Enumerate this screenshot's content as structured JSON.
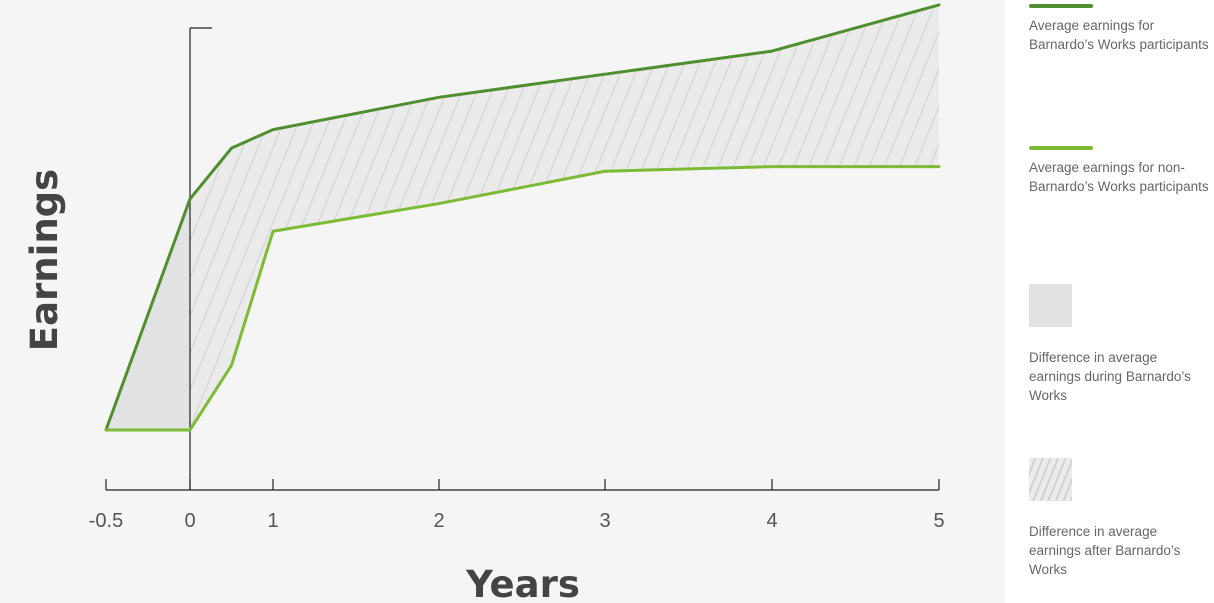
{
  "chart_data": {
    "type": "line",
    "xlabel": "Years",
    "ylabel": "Earnings",
    "x_ticks": [
      "-0.5",
      "0",
      "1",
      "2",
      "3",
      "4",
      "5"
    ],
    "xlim": [
      -0.5,
      5
    ],
    "ylim": [
      0,
      100
    ],
    "series": [
      {
        "name": "Average earnings for Barnardo’s Works participants",
        "color": "#4f8f2f",
        "points": [
          [
            -0.5,
            13
          ],
          [
            0,
            63
          ],
          [
            0.5,
            74
          ],
          [
            1,
            78
          ],
          [
            2,
            85
          ],
          [
            3,
            90
          ],
          [
            4,
            95
          ],
          [
            5,
            105
          ]
        ]
      },
      {
        "name": "Average earnings for non-Barnardo’s Works participants",
        "color": "#7dbb37",
        "points": [
          [
            -0.5,
            13
          ],
          [
            0,
            13
          ],
          [
            0.5,
            27
          ],
          [
            1,
            56
          ],
          [
            2,
            62
          ],
          [
            3,
            69
          ],
          [
            4,
            70
          ],
          [
            5,
            70
          ]
        ]
      }
    ],
    "areas": [
      {
        "name": "Difference in average earnings during Barnardo’s Works",
        "x_range": [
          -0.5,
          0
        ],
        "fill": "#e2e2e2",
        "pattern": "solid"
      },
      {
        "name": "Difference in average earnings after Barnardo’s Works",
        "x_range": [
          0,
          5
        ],
        "fill": "#ebebeb",
        "pattern": "hatched"
      }
    ]
  },
  "legend": {
    "items": [
      {
        "kind": "line",
        "color": "#4f8f2f",
        "text": "Average earnings for Barnardo’s Works participants"
      },
      {
        "kind": "line",
        "color": "#7dbb37",
        "text": "Average earnings for non-Barnardo’s Works participants"
      },
      {
        "kind": "solid",
        "color": "#e2e2e2",
        "text": "Difference in average earnings during Barnardo’s Works"
      },
      {
        "kind": "hatched",
        "color": "#ebebeb",
        "text": "Difference in average earnings after Barnardo’s Works"
      }
    ]
  }
}
